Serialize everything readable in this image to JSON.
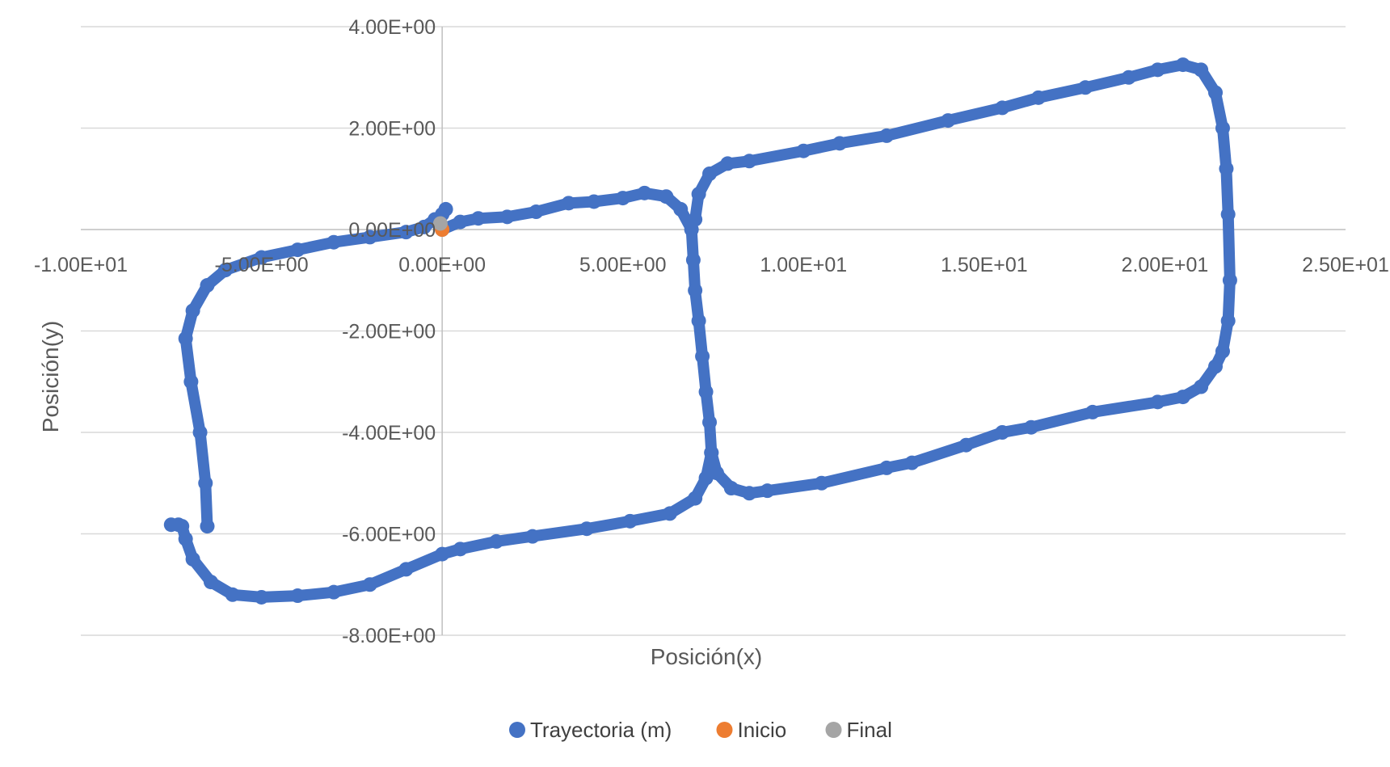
{
  "chart_data": {
    "type": "scatter",
    "title": "",
    "xlabel": "Posición(x)",
    "ylabel": "Posición(y)",
    "xlim": [
      -10,
      25
    ],
    "ylim": [
      -8,
      4
    ],
    "grid": true,
    "legend_position": "bottom",
    "x_ticks": [
      {
        "value": -10,
        "label": "-1.00E+01"
      },
      {
        "value": -5,
        "label": "-5.00E+00"
      },
      {
        "value": 0,
        "label": "0.00E+00"
      },
      {
        "value": 5,
        "label": "5.00E+00"
      },
      {
        "value": 10,
        "label": "1.00E+01"
      },
      {
        "value": 15,
        "label": "1.50E+01"
      },
      {
        "value": 20,
        "label": "2.00E+01"
      },
      {
        "value": 25,
        "label": "2.50E+01"
      }
    ],
    "y_ticks": [
      {
        "value": 4,
        "label": "4.00E+00"
      },
      {
        "value": 2,
        "label": "2.00E+00"
      },
      {
        "value": 0,
        "label": "0.00E+00"
      },
      {
        "value": -2,
        "label": "-2.00E+00"
      },
      {
        "value": -4,
        "label": "-4.00E+00"
      },
      {
        "value": -6,
        "label": "-6.00E+00"
      },
      {
        "value": -8,
        "label": "-8.00E+00"
      }
    ],
    "series": [
      {
        "name": "Trayectoria (m)",
        "color": "#4472C4",
        "points": [
          [
            0.0,
            0.0
          ],
          [
            0.5,
            0.15
          ],
          [
            1.0,
            0.22
          ],
          [
            1.8,
            0.25
          ],
          [
            2.6,
            0.35
          ],
          [
            3.5,
            0.52
          ],
          [
            4.2,
            0.55
          ],
          [
            5.0,
            0.62
          ],
          [
            5.6,
            0.72
          ],
          [
            6.2,
            0.65
          ],
          [
            6.6,
            0.4
          ],
          [
            6.9,
            0.0
          ],
          [
            6.95,
            -0.6
          ],
          [
            7.0,
            -1.2
          ],
          [
            7.1,
            -1.8
          ],
          [
            7.2,
            -2.5
          ],
          [
            7.3,
            -3.2
          ],
          [
            7.4,
            -3.8
          ],
          [
            7.45,
            -4.4
          ],
          [
            7.3,
            -4.9
          ],
          [
            7.0,
            -5.3
          ],
          [
            6.3,
            -5.6
          ],
          [
            5.2,
            -5.75
          ],
          [
            4.0,
            -5.9
          ],
          [
            2.5,
            -6.05
          ],
          [
            1.5,
            -6.15
          ],
          [
            0.5,
            -6.3
          ],
          [
            0.0,
            -6.4
          ],
          [
            -1.0,
            -6.7
          ],
          [
            -2.0,
            -7.0
          ],
          [
            -3.0,
            -7.15
          ],
          [
            -4.0,
            -7.22
          ],
          [
            -5.0,
            -7.25
          ],
          [
            -5.8,
            -7.2
          ],
          [
            -6.4,
            -6.95
          ],
          [
            -6.9,
            -6.5
          ],
          [
            -7.1,
            -6.1
          ],
          [
            -7.2,
            -5.85
          ],
          [
            -7.3,
            -5.82
          ],
          [
            -7.5,
            -5.82
          ]
        ]
      },
      {
        "name": "Trayectoria (m)",
        "color": "#4472C4",
        "points": [
          [
            -6.5,
            -5.85
          ],
          [
            -6.55,
            -5.0
          ],
          [
            -6.7,
            -4.0
          ],
          [
            -6.95,
            -3.0
          ],
          [
            -7.1,
            -2.15
          ],
          [
            -6.9,
            -1.6
          ],
          [
            -6.5,
            -1.1
          ],
          [
            -6.0,
            -0.8
          ],
          [
            -5.0,
            -0.55
          ],
          [
            -4.0,
            -0.4
          ],
          [
            -3.0,
            -0.25
          ],
          [
            -2.0,
            -0.15
          ],
          [
            -1.0,
            -0.05
          ],
          [
            -0.5,
            0.05
          ],
          [
            -0.2,
            0.2
          ],
          [
            0.0,
            0.3
          ],
          [
            0.1,
            0.4
          ]
        ]
      },
      {
        "name": "Trayectoria (m)",
        "color": "#4472C4",
        "points": [
          [
            7.0,
            0.2
          ],
          [
            7.1,
            0.7
          ],
          [
            7.4,
            1.1
          ],
          [
            7.9,
            1.3
          ],
          [
            8.5,
            1.35
          ],
          [
            10.0,
            1.55
          ],
          [
            11.0,
            1.7
          ],
          [
            12.3,
            1.85
          ],
          [
            14.0,
            2.15
          ],
          [
            15.5,
            2.4
          ],
          [
            16.5,
            2.6
          ],
          [
            17.8,
            2.8
          ],
          [
            19.0,
            3.0
          ],
          [
            19.8,
            3.15
          ],
          [
            20.5,
            3.25
          ],
          [
            21.0,
            3.15
          ],
          [
            21.4,
            2.7
          ],
          [
            21.6,
            2.0
          ],
          [
            21.7,
            1.2
          ],
          [
            21.75,
            0.3
          ],
          [
            21.8,
            -1.0
          ],
          [
            21.75,
            -1.8
          ],
          [
            21.6,
            -2.4
          ],
          [
            21.4,
            -2.7
          ],
          [
            21.0,
            -3.1
          ],
          [
            20.5,
            -3.3
          ],
          [
            19.8,
            -3.4
          ],
          [
            18.0,
            -3.6
          ],
          [
            16.3,
            -3.9
          ],
          [
            15.5,
            -4.0
          ],
          [
            14.5,
            -4.25
          ],
          [
            13.0,
            -4.6
          ],
          [
            12.3,
            -4.7
          ],
          [
            10.5,
            -5.0
          ],
          [
            9.0,
            -5.15
          ],
          [
            8.5,
            -5.2
          ],
          [
            8.0,
            -5.1
          ],
          [
            7.6,
            -4.8
          ],
          [
            7.45,
            -4.4
          ]
        ]
      },
      {
        "name": "Inicio",
        "color": "#ED7D31",
        "points": [
          [
            0.0,
            0.0
          ]
        ]
      },
      {
        "name": "Final",
        "color": "#A5A5A5",
        "points": [
          [
            -0.05,
            0.12
          ]
        ]
      }
    ],
    "legend": [
      {
        "label": "Trayectoria (m)",
        "color": "#4472C4"
      },
      {
        "label": "Inicio",
        "color": "#ED7D31"
      },
      {
        "label": "Final",
        "color": "#A5A5A5"
      }
    ]
  }
}
